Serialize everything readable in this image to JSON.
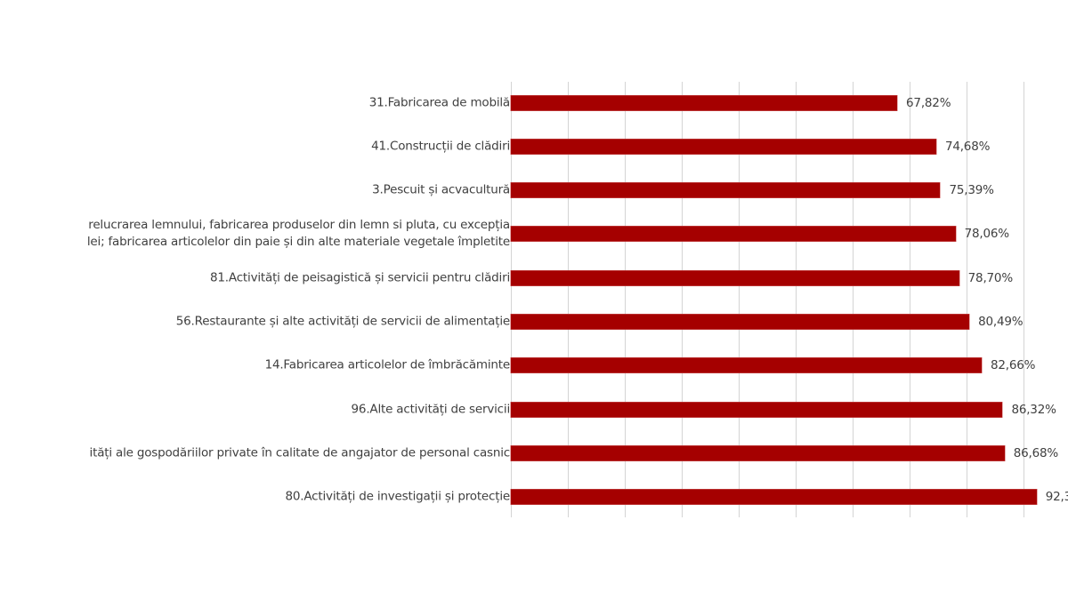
{
  "chart_data": {
    "type": "bar",
    "orientation": "horizontal",
    "title": "",
    "xlabel": "",
    "ylabel": "",
    "xlim": [
      0,
      90
    ],
    "grid": true,
    "gridline_step": 10,
    "legend": null,
    "bar_color": "#a50000",
    "categories": [
      "31.Fabricarea de mobilă",
      "41.Construcții de clădiri",
      "3.Pescuit și acvacultură",
      "...relucrarea lemnului, fabricarea produselor din lemn si pluta, cu excepția ...lei; fabricarea articolelor din paie și din alte materiale vegetale împletite",
      "81.Activități de peisagistică și servicii pentru clădiri",
      "56.Restaurante și alte activități de servicii de alimentație",
      "14.Fabricarea articolelor de îmbrăcăminte",
      "96.Alte activități de servicii",
      "...ități ale gospodăriilor private în calitate de angajator de personal casnic",
      "80.Activități de investigații și protecție"
    ],
    "values": [
      67.82,
      74.68,
      75.39,
      78.06,
      78.7,
      80.49,
      82.66,
      86.32,
      86.68,
      92.3
    ],
    "value_labels": [
      "67,82%",
      "74,68%",
      "75,39%",
      "78,06%",
      "78,70%",
      "80,49%",
      "82,66%",
      "86,32%",
      "86,68%",
      "92,3"
    ]
  },
  "rows": [
    {
      "label_lines": [
        "31.Fabricarea de mobilă"
      ],
      "value": 67.82,
      "value_label": "67,82%"
    },
    {
      "label_lines": [
        "41.Construcții de clădiri"
      ],
      "value": 74.68,
      "value_label": "74,68%"
    },
    {
      "label_lines": [
        "3.Pescuit și acvacultură"
      ],
      "value": 75.39,
      "value_label": "75,39%"
    },
    {
      "label_lines": [
        "relucrarea lemnului, fabricarea produselor din lemn si pluta, cu excepția",
        "lei; fabricarea articolelor din paie și din alte materiale vegetale împletite"
      ],
      "value": 78.06,
      "value_label": "78,06%"
    },
    {
      "label_lines": [
        "81.Activități de peisagistică și servicii pentru clădiri"
      ],
      "value": 78.7,
      "value_label": "78,70%"
    },
    {
      "label_lines": [
        "56.Restaurante și alte activități de servicii de alimentație"
      ],
      "value": 80.49,
      "value_label": "80,49%"
    },
    {
      "label_lines": [
        "14.Fabricarea articolelor de îmbrăcăminte"
      ],
      "value": 82.66,
      "value_label": "82,66%"
    },
    {
      "label_lines": [
        "96.Alte activități de servicii"
      ],
      "value": 86.32,
      "value_label": "86,32%"
    },
    {
      "label_lines": [
        "ități ale gospodăriilor private în calitate de angajator de personal casnic"
      ],
      "value": 86.68,
      "value_label": "86,68%"
    },
    {
      "label_lines": [
        "80.Activități de investigații și protecție"
      ],
      "value": 92.3,
      "value_label": "92,3"
    }
  ]
}
